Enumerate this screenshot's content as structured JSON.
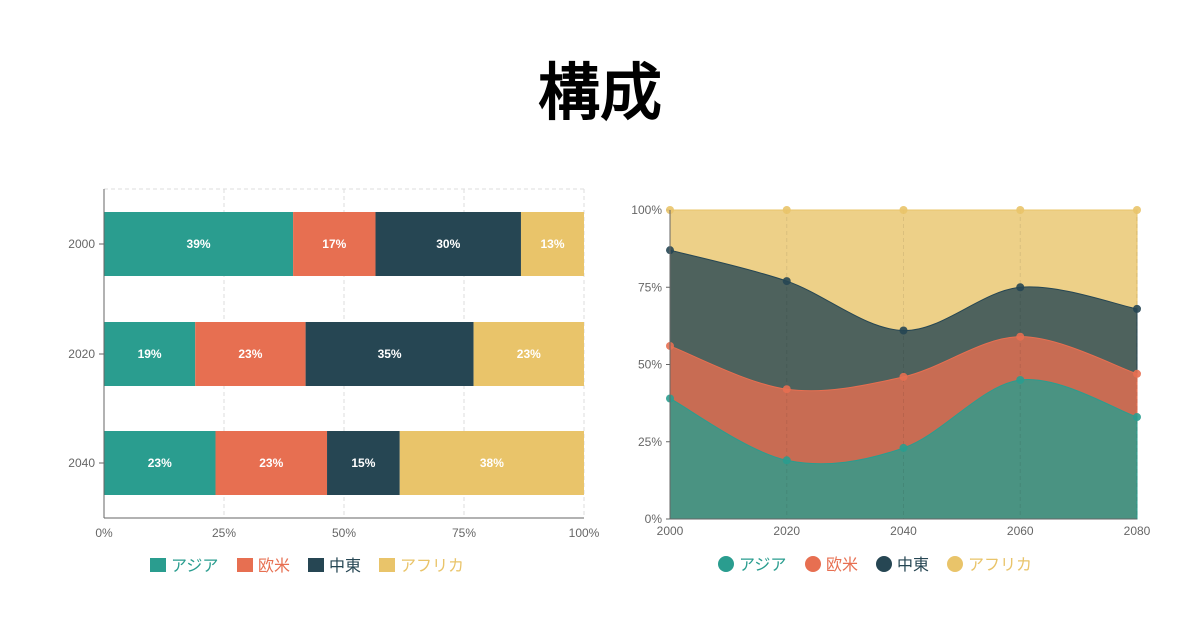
{
  "title": "構成",
  "colors": {
    "asia": "#2a9d8f",
    "europe": "#e76f51",
    "middle_east": "#264653",
    "africa": "#e9c46a"
  },
  "chart_data": [
    {
      "type": "bar",
      "orientation": "horizontal-stacked-percent",
      "categories": [
        "2000",
        "2020",
        "2040"
      ],
      "series": [
        {
          "name": "アジア",
          "values": [
            39,
            19,
            23
          ]
        },
        {
          "name": "欧米",
          "values": [
            17,
            23,
            23
          ]
        },
        {
          "name": "中東",
          "values": [
            30,
            35,
            15
          ]
        },
        {
          "name": "アフリカ",
          "values": [
            13,
            23,
            38
          ]
        }
      ],
      "data_labels": [
        [
          "39%",
          "17%",
          "30%",
          "13%"
        ],
        [
          "19%",
          "23%",
          "35%",
          "23%"
        ],
        [
          "23%",
          "23%",
          "15%",
          "38%"
        ]
      ],
      "xticks": [
        "0%",
        "25%",
        "50%",
        "75%",
        "100%"
      ],
      "xlim": [
        0,
        100
      ],
      "grid": true,
      "legend": "bottom"
    },
    {
      "type": "area",
      "stacked": true,
      "x": [
        "2000",
        "2020",
        "2040",
        "2060",
        "2080"
      ],
      "series": [
        {
          "name": "アジア",
          "values": [
            39,
            19,
            23,
            45,
            33
          ]
        },
        {
          "name": "欧米",
          "values": [
            17,
            23,
            23,
            14,
            14
          ]
        },
        {
          "name": "中東",
          "values": [
            31,
            35,
            15,
            16,
            21
          ]
        },
        {
          "name": "アフリカ",
          "values": [
            13,
            23,
            39,
            25,
            32
          ]
        }
      ],
      "yticks": [
        "0%",
        "25%",
        "50%",
        "75%",
        "100%"
      ],
      "ylim": [
        0,
        100
      ],
      "grid": true,
      "legend": "bottom"
    }
  ]
}
